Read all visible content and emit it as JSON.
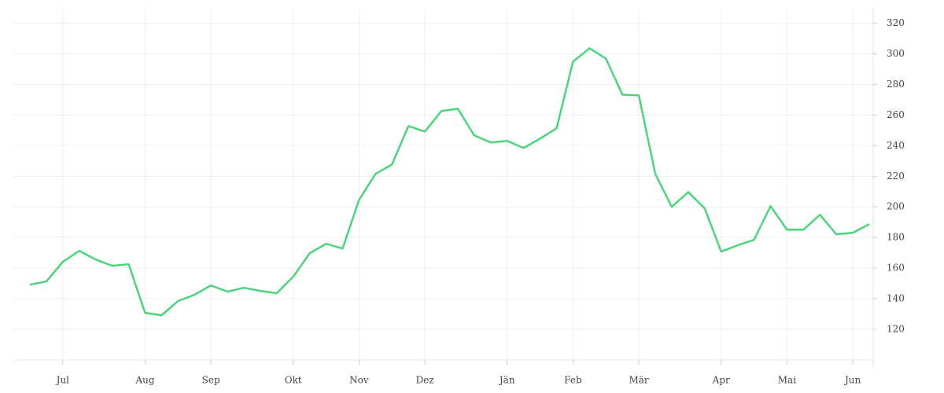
{
  "chart_data": {
    "type": "line",
    "categories": [
      null,
      null,
      "Jul",
      null,
      null,
      null,
      null,
      "Aug",
      null,
      null,
      null,
      "Sep",
      null,
      null,
      null,
      null,
      "Okt",
      null,
      null,
      null,
      "Nov",
      null,
      null,
      null,
      "Dez",
      null,
      null,
      null,
      null,
      "Jän",
      null,
      null,
      null,
      "Feb",
      null,
      null,
      null,
      "Mär",
      null,
      null,
      null,
      null,
      "Apr",
      null,
      null,
      null,
      "Mai",
      null,
      null,
      null,
      "Jun",
      null
    ],
    "series": [
      {
        "color": "#4cd47c",
        "values": [
          149.2,
          151.3,
          164.1,
          171.3,
          165.6,
          161.5,
          162.6,
          130.8,
          129.2,
          138.5,
          142.6,
          148.7,
          144.6,
          147.2,
          145.1,
          143.6,
          154.4,
          169.7,
          175.9,
          172.8,
          204.6,
          221.5,
          227.7,
          252.8,
          249.2,
          262.6,
          264.1,
          246.7,
          242.1,
          243.1,
          238.5,
          244.6,
          251.3,
          294.9,
          303.6,
          296.9,
          273.3,
          272.8,
          221.5,
          200,
          209.7,
          199,
          170.8,
          174.9,
          178.5,
          200.5,
          185.1,
          185.1,
          194.9,
          182.1,
          183.1,
          188.7
        ]
      }
    ],
    "ylim": [
      100,
      330
    ],
    "yticks": [
      120,
      140,
      160,
      180,
      200,
      220,
      240,
      260,
      280,
      300,
      320
    ],
    "grid": true
  }
}
